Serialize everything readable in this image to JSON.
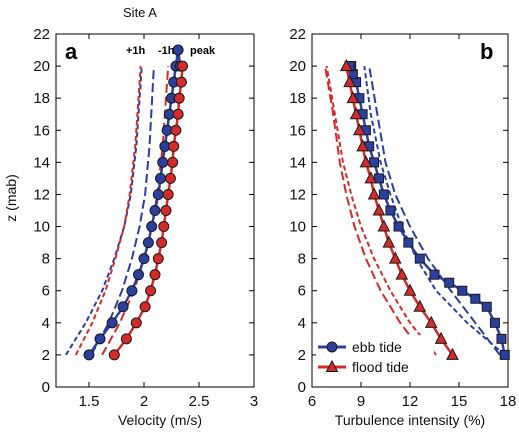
{
  "chart_data": [
    {
      "type": "line",
      "panel_letter": "a",
      "title": "Site A",
      "xlabel": "Velocity (m/s)",
      "ylabel": "z (mab)",
      "xlim": [
        1.2,
        3.0
      ],
      "ylim": [
        0,
        22
      ],
      "xticks": [
        "1.5",
        "2",
        "2.5",
        "3"
      ],
      "yticks": [
        "0",
        "2",
        "4",
        "6",
        "8",
        "10",
        "12",
        "14",
        "16",
        "18",
        "20",
        "22"
      ],
      "annotations": [
        "+1h",
        "-1h",
        "peak"
      ],
      "series": [
        {
          "group": "ebb",
          "kind": "peak",
          "color": "#2b3f9e",
          "x": [
            1.5,
            1.6,
            1.71,
            1.81,
            1.89,
            1.95,
            2.0,
            2.04,
            2.07,
            2.1,
            2.13,
            2.15,
            2.17,
            2.19,
            2.21,
            2.23,
            2.25,
            2.27,
            2.29,
            2.31,
            2.33
          ],
          "y": [
            2,
            3,
            4,
            5,
            6,
            7,
            8,
            9,
            10,
            11,
            12,
            13,
            14,
            15,
            16,
            17,
            18,
            19,
            20,
            21,
            20
          ]
        },
        {
          "group": "flood",
          "kind": "peak",
          "color": "#d42a2a",
          "x": [
            1.73,
            1.84,
            1.93,
            2.01,
            2.06,
            2.1,
            2.13,
            2.16,
            2.18,
            2.2,
            2.22,
            2.24,
            2.26,
            2.27,
            2.29,
            2.31,
            2.32,
            2.34,
            2.35
          ],
          "y": [
            2,
            3,
            4,
            5,
            6,
            7,
            8,
            9,
            10,
            11,
            12,
            13,
            14,
            15,
            16,
            17,
            18,
            19,
            20
          ]
        },
        {
          "group": "ebb",
          "kind": "+1h",
          "color": "#2b3f9e",
          "x": [
            1.29,
            1.47,
            1.62,
            1.73,
            1.82,
            1.88,
            1.93,
            1.98
          ],
          "y": [
            2,
            4,
            6,
            8,
            10,
            12,
            15,
            20
          ]
        },
        {
          "group": "flood",
          "kind": "+1h",
          "color": "#d42a2a",
          "x": [
            1.38,
            1.53,
            1.65,
            1.74,
            1.82,
            1.87,
            1.92,
            1.97
          ],
          "y": [
            2,
            4,
            6,
            8,
            10,
            12,
            15,
            20
          ]
        },
        {
          "group": "ebb",
          "kind": "-1h",
          "color": "#2b3f9e",
          "x": [
            1.52,
            1.68,
            1.8,
            1.89,
            1.96,
            2.01,
            2.05,
            2.09
          ],
          "y": [
            2,
            4,
            6,
            8,
            10,
            12,
            15,
            20
          ]
        },
        {
          "group": "flood",
          "kind": "-1h",
          "color": "#d42a2a",
          "x": [
            1.62,
            1.78,
            1.91,
            2.0,
            2.07,
            2.12,
            2.17,
            2.22
          ],
          "y": [
            2,
            4,
            6,
            8,
            10,
            12,
            15,
            20
          ]
        }
      ]
    },
    {
      "type": "line",
      "panel_letter": "b",
      "xlabel": "Turbulence intensity (%)",
      "ylabel": "",
      "xlim": [
        6,
        18
      ],
      "ylim": [
        0,
        22
      ],
      "xticks": [
        "6",
        "9",
        "12",
        "15",
        "18"
      ],
      "yticks": [
        "0",
        "2",
        "4",
        "6",
        "8",
        "10",
        "12",
        "14",
        "16",
        "18",
        "20",
        "22"
      ],
      "legend": {
        "position": "bottom-left",
        "entries": [
          "ebb tide",
          "flood tide"
        ]
      },
      "series": [
        {
          "group": "ebb",
          "kind": "peak",
          "name": "ebb tide",
          "color": "#2b3f9e",
          "x": [
            17.8,
            17.6,
            17.2,
            16.7,
            16.0,
            15.2,
            14.4,
            13.5,
            12.6,
            11.9,
            11.3,
            10.8,
            10.4,
            10.1,
            9.8,
            9.5,
            9.3,
            9.1,
            8.9,
            8.7,
            8.5,
            8.4,
            8.3
          ],
          "y": [
            2,
            3,
            4,
            5,
            5.5,
            6,
            6.5,
            7,
            8,
            9,
            10,
            11,
            12,
            13,
            14,
            15,
            16,
            17,
            18,
            19,
            19.5,
            20,
            20
          ]
        },
        {
          "group": "flood",
          "kind": "peak",
          "name": "flood tide",
          "color": "#d42a2a",
          "x": [
            14.6,
            13.9,
            13.3,
            12.6,
            12.0,
            11.5,
            11.1,
            10.7,
            10.4,
            10.1,
            9.8,
            9.6,
            9.3,
            9.1,
            8.9,
            8.7,
            8.5,
            8.3,
            8.1
          ],
          "y": [
            2,
            3,
            4,
            5,
            6,
            7,
            8,
            9,
            10,
            11,
            12,
            13,
            14,
            15,
            16,
            17,
            18,
            19,
            20
          ]
        },
        {
          "group": "ebb",
          "kind": "+1h",
          "color": "#2b3f9e",
          "x": [
            17.8,
            15.5,
            13.6,
            12.4,
            11.5,
            10.8,
            10.2,
            9.6,
            9.2
          ],
          "y": [
            2,
            4,
            6,
            8,
            10,
            12,
            14,
            17,
            20
          ]
        },
        {
          "group": "ebb",
          "kind": "-1h",
          "color": "#2b3f9e",
          "x": [
            17.5,
            16.0,
            14.5,
            13.1,
            12.0,
            11.1,
            10.5,
            10.0,
            9.5
          ],
          "y": [
            2,
            4,
            6,
            8,
            10,
            12,
            14,
            17,
            20
          ]
        },
        {
          "group": "flood",
          "kind": "+1h",
          "color": "#d42a2a",
          "x": [
            13.6,
            12.0,
            10.8,
            9.8,
            9.0,
            8.4,
            7.9,
            7.4,
            6.9
          ],
          "y": [
            2,
            4,
            6,
            8,
            10,
            12,
            14,
            17,
            20
          ]
        },
        {
          "group": "flood",
          "kind": "-1h",
          "color": "#d42a2a",
          "x": [
            12.9,
            11.4,
            10.2,
            9.3,
            8.6,
            8.1,
            7.7,
            7.3,
            6.8
          ],
          "y": [
            2,
            4,
            6,
            8,
            10,
            12,
            14,
            17,
            20
          ]
        }
      ]
    }
  ]
}
